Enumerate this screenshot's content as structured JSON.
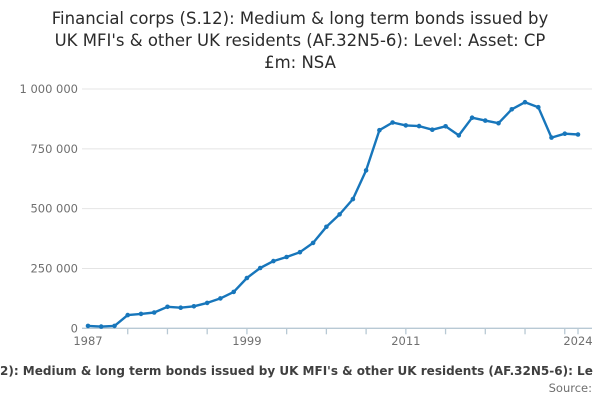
{
  "title": {
    "line1": "Financial corps (S.12): Medium & long term bonds issued by",
    "line2": "UK MFI's & other UK residents (AF.32N5-6): Level: Asset: CP",
    "line3": "£m: NSA"
  },
  "chart_data": {
    "type": "line",
    "title": "Financial corps (S.12): Medium & long term bonds issued by UK MFI's & other UK residents (AF.32N5-6): Level: Asset: CP £m: NSA",
    "xlabel": "",
    "ylabel": "",
    "x": [
      1987,
      1988,
      1989,
      1990,
      1991,
      1992,
      1993,
      1994,
      1995,
      1996,
      1997,
      1998,
      1999,
      2000,
      2001,
      2002,
      2003,
      2004,
      2005,
      2006,
      2007,
      2008,
      2009,
      2010,
      2011,
      2012,
      2013,
      2014,
      2015,
      2016,
      2017,
      2018,
      2019,
      2020,
      2021,
      2022,
      2023,
      2024
    ],
    "series": [
      {
        "name": "Financial corps (S.12): Medium & long term bonds issued by UK MFI's & other UK residents (AF.32N5-6): Level: Asset: CP £m: NSA",
        "values": [
          10000,
          7000,
          10000,
          55000,
          60000,
          66000,
          90000,
          86000,
          92000,
          106000,
          125000,
          152000,
          210000,
          252000,
          281000,
          298000,
          318000,
          357000,
          424000,
          476000,
          540000,
          660000,
          828000,
          860000,
          848000,
          845000,
          830000,
          844000,
          806000,
          880000,
          868000,
          857000,
          915000,
          945000,
          924000,
          797000,
          813000,
          810000
        ]
      }
    ],
    "xlim": [
      1987,
      2024
    ],
    "ylim": [
      0,
      1000000
    ],
    "grid": "horizontal",
    "legend_position": "bottom",
    "y_ticks": [
      0,
      250000,
      500000,
      750000,
      1000000
    ],
    "y_tick_labels": [
      "0",
      "250 000",
      "500 000",
      "750 000",
      "1 000 000"
    ],
    "x_label_ticks": [
      1987,
      1999,
      2011,
      2024
    ],
    "x_tick_labels": [
      "1987",
      "1999",
      "2011",
      "2024"
    ],
    "x_minor_ticks": [
      1990,
      1993,
      1996,
      1999,
      2002,
      2005,
      2008,
      2011,
      2014,
      2017,
      2020,
      2023,
      2024
    ],
    "line_color": "#1776bb",
    "marker_color": "#1776bb",
    "grid_color": "#e4e4e4",
    "axis_color": "#b8c9d4",
    "tick_label_color": "#6f6f6f"
  },
  "footer": {
    "legend_text": "2): Medium & long term bonds issued by UK MFI's & other UK residents (AF.32N5-6): Le",
    "source_label": "Source:"
  }
}
